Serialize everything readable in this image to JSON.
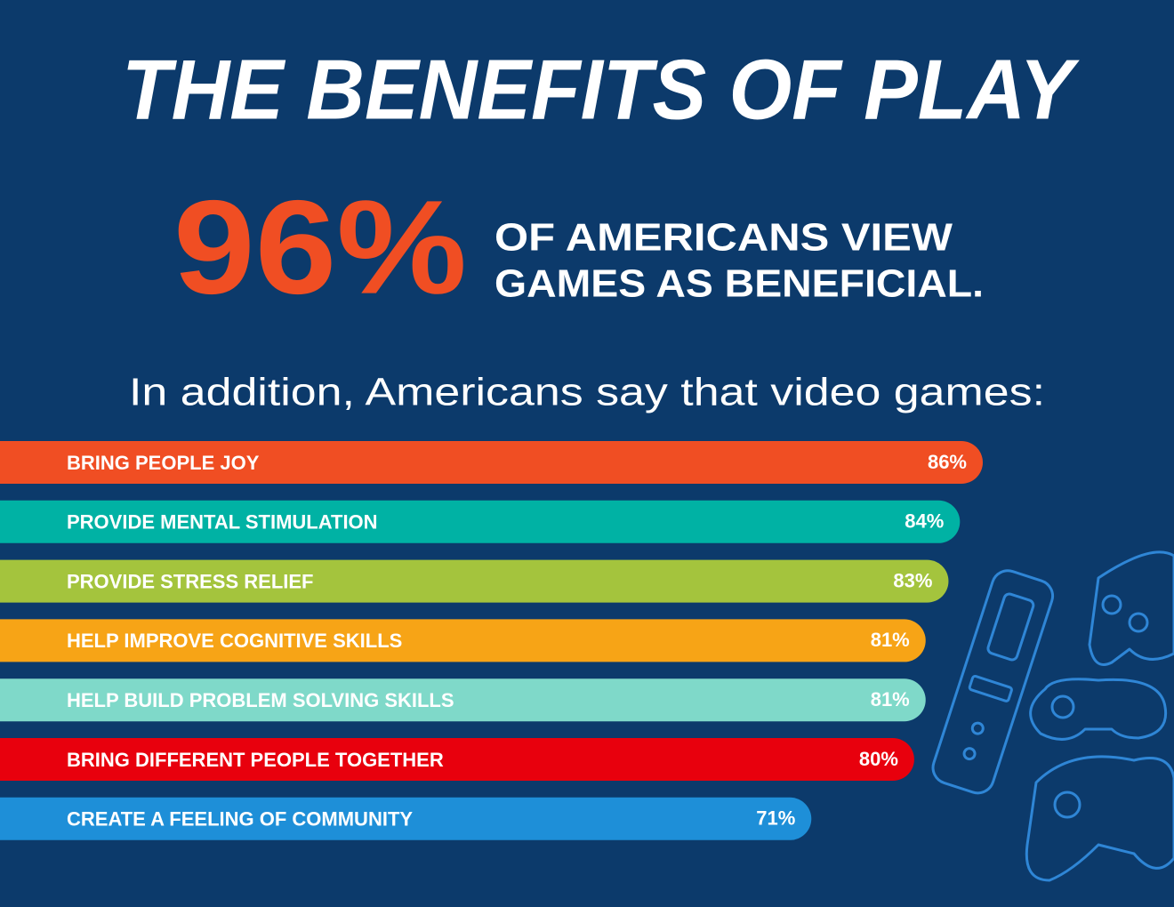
{
  "chart_data": {
    "type": "bar",
    "orientation": "horizontal",
    "title": "THE BENEFITS OF PLAY",
    "headline_stat": "96%",
    "headline_lines": [
      "OF  AMERICANS VIEW",
      "GAMES AS BENEFICIAL."
    ],
    "subtitle": "In addition, Americans say that video games:",
    "categories": [
      "BRING PEOPLE JOY",
      "PROVIDE MENTAL STIMULATION",
      "PROVIDE STRESS RELIEF",
      "HELP IMPROVE COGNITIVE SKILLS",
      "HELP BUILD PROBLEM SOLVING SKILLS",
      "BRING DIFFERENT PEOPLE TOGETHER",
      "CREATE A FEELING OF COMMUNITY"
    ],
    "values": [
      86,
      84,
      83,
      81,
      81,
      80,
      71
    ],
    "value_labels": [
      "86%",
      "84%",
      "83%",
      "81%",
      "81%",
      "80%",
      "71%"
    ],
    "colors": [
      "#f04e23",
      "#00b2a4",
      "#a4c43d",
      "#f7a416",
      "#7fd9c9",
      "#e8000d",
      "#1e8fd8"
    ]
  }
}
